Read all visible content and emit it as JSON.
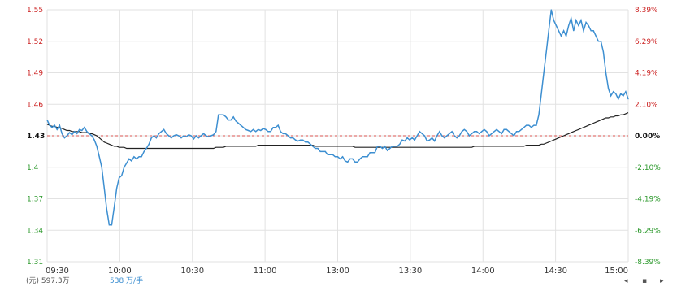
{
  "chart_data": {
    "type": "line",
    "title": "",
    "xlabel": "",
    "ylabel": "",
    "reference_price": 1.43,
    "ylim": [
      1.31,
      1.55
    ],
    "pct_lim": [
      -8.39,
      8.39
    ],
    "grid": true,
    "colors": {
      "price": "#3d8fd1",
      "avg": "#222222",
      "ref": "#d9534f",
      "up": "#cc2222",
      "down": "#2e9a2e",
      "ref_label": "#111111",
      "grid": "#e2e2e2"
    },
    "left_ticks": [
      "1.55",
      "1.52",
      "1.49",
      "1.46",
      "1.43",
      "1.4",
      "1.37",
      "1.34",
      "1.31"
    ],
    "right_ticks": [
      "8.39%",
      "6.29%",
      "4.19%",
      "2.10%",
      "0.00%",
      "-2.10%",
      "-4.19%",
      "-6.29%",
      "-8.39%"
    ],
    "x_ticks": [
      "09:30",
      "10:00",
      "10:30",
      "11:00",
      "13:00",
      "13:30",
      "14:00",
      "14:30",
      "15:00"
    ],
    "footer_left": "(元) 597.3万",
    "footer_mid": "538 万/手",
    "watermark": "",
    "series": [
      {
        "values": [
          1.445,
          1.44,
          1.438,
          1.44,
          1.436,
          1.44,
          1.432,
          1.428,
          1.43,
          1.433,
          1.431,
          1.434,
          1.432,
          1.436,
          1.435,
          1.438,
          1.434,
          1.432,
          1.43,
          1.426,
          1.42,
          1.41,
          1.4,
          1.38,
          1.36,
          1.345,
          1.345,
          1.362,
          1.38,
          1.39,
          1.392,
          1.4,
          1.404,
          1.408,
          1.406,
          1.41,
          1.408,
          1.41,
          1.41,
          1.415,
          1.418,
          1.422,
          1.428,
          1.43,
          1.428,
          1.432,
          1.434,
          1.436,
          1.432,
          1.43,
          1.428,
          1.43,
          1.431,
          1.43,
          1.428,
          1.43,
          1.429,
          1.431,
          1.43,
          1.427,
          1.43,
          1.428,
          1.43,
          1.432,
          1.43,
          1.429,
          1.43,
          1.431,
          1.434,
          1.45,
          1.45,
          1.45,
          1.448,
          1.445,
          1.445,
          1.448,
          1.444,
          1.442,
          1.44,
          1.438,
          1.436,
          1.435,
          1.434,
          1.436,
          1.434,
          1.436,
          1.435,
          1.437,
          1.436,
          1.434,
          1.434,
          1.438,
          1.438,
          1.44,
          1.434,
          1.432,
          1.432,
          1.43,
          1.428,
          1.428,
          1.426,
          1.425,
          1.426,
          1.426,
          1.424,
          1.424,
          1.422,
          1.42,
          1.418,
          1.418,
          1.415,
          1.415,
          1.415,
          1.412,
          1.412,
          1.412,
          1.41,
          1.41,
          1.408,
          1.41,
          1.406,
          1.405,
          1.408,
          1.408,
          1.405,
          1.405,
          1.408,
          1.41,
          1.41,
          1.41,
          1.414,
          1.414,
          1.414,
          1.42,
          1.42,
          1.418,
          1.42,
          1.416,
          1.418,
          1.42,
          1.42,
          1.42,
          1.422,
          1.426,
          1.425,
          1.428,
          1.426,
          1.428,
          1.426,
          1.43,
          1.434,
          1.432,
          1.43,
          1.425,
          1.426,
          1.428,
          1.425,
          1.43,
          1.434,
          1.43,
          1.428,
          1.43,
          1.432,
          1.434,
          1.43,
          1.428,
          1.43,
          1.434,
          1.436,
          1.434,
          1.43,
          1.432,
          1.434,
          1.434,
          1.432,
          1.434,
          1.436,
          1.434,
          1.43,
          1.432,
          1.434,
          1.436,
          1.434,
          1.432,
          1.436,
          1.436,
          1.434,
          1.432,
          1.43,
          1.434,
          1.434,
          1.436,
          1.438,
          1.44,
          1.44,
          1.438,
          1.44,
          1.44,
          1.45,
          1.47,
          1.49,
          1.51,
          1.53,
          1.55,
          1.54,
          1.535,
          1.53,
          1.525,
          1.53,
          1.525,
          1.535,
          1.542,
          1.53,
          1.54,
          1.535,
          1.54,
          1.53,
          1.538,
          1.535,
          1.53,
          1.53,
          1.525,
          1.52,
          1.52,
          1.51,
          1.49,
          1.475,
          1.468,
          1.472,
          1.47,
          1.465,
          1.47,
          1.468,
          1.472,
          1.465
        ],
        "avg": [
          1.441,
          1.44,
          1.439,
          1.439,
          1.438,
          1.438,
          1.437,
          1.436,
          1.435,
          1.435,
          1.434,
          1.434,
          1.434,
          1.434,
          1.433,
          1.433,
          1.433,
          1.432,
          1.432,
          1.431,
          1.43,
          1.428,
          1.426,
          1.424,
          1.423,
          1.422,
          1.421,
          1.42,
          1.42,
          1.419,
          1.419,
          1.419,
          1.418,
          1.418,
          1.418,
          1.418,
          1.418,
          1.418,
          1.418,
          1.418,
          1.418,
          1.418,
          1.418,
          1.418,
          1.418,
          1.418,
          1.418,
          1.418,
          1.418,
          1.418,
          1.418,
          1.418,
          1.418,
          1.418,
          1.418,
          1.418,
          1.418,
          1.418,
          1.418,
          1.418,
          1.418,
          1.418,
          1.418,
          1.418,
          1.418,
          1.418,
          1.418,
          1.418,
          1.419,
          1.419,
          1.419,
          1.419,
          1.42,
          1.42,
          1.42,
          1.42,
          1.42,
          1.42,
          1.42,
          1.42,
          1.42,
          1.42,
          1.42,
          1.42,
          1.42,
          1.421,
          1.421,
          1.421,
          1.421,
          1.421,
          1.421,
          1.421,
          1.421,
          1.421,
          1.421,
          1.421,
          1.421,
          1.421,
          1.421,
          1.421,
          1.421,
          1.421,
          1.421,
          1.421,
          1.421,
          1.421,
          1.421,
          1.421,
          1.42,
          1.42,
          1.42,
          1.42,
          1.42,
          1.42,
          1.42,
          1.42,
          1.42,
          1.42,
          1.42,
          1.42,
          1.42,
          1.42,
          1.42,
          1.42,
          1.419,
          1.419,
          1.419,
          1.419,
          1.419,
          1.419,
          1.419,
          1.419,
          1.419,
          1.419,
          1.419,
          1.419,
          1.419,
          1.419,
          1.419,
          1.419,
          1.419,
          1.419,
          1.419,
          1.419,
          1.419,
          1.419,
          1.419,
          1.419,
          1.419,
          1.419,
          1.419,
          1.419,
          1.419,
          1.419,
          1.419,
          1.419,
          1.419,
          1.419,
          1.419,
          1.419,
          1.419,
          1.419,
          1.419,
          1.419,
          1.419,
          1.419,
          1.419,
          1.419,
          1.419,
          1.419,
          1.419,
          1.419,
          1.42,
          1.42,
          1.42,
          1.42,
          1.42,
          1.42,
          1.42,
          1.42,
          1.42,
          1.42,
          1.42,
          1.42,
          1.42,
          1.42,
          1.42,
          1.42,
          1.42,
          1.42,
          1.42,
          1.42,
          1.42,
          1.421,
          1.421,
          1.421,
          1.421,
          1.421,
          1.421,
          1.422,
          1.422,
          1.423,
          1.424,
          1.425,
          1.426,
          1.427,
          1.428,
          1.429,
          1.43,
          1.431,
          1.432,
          1.433,
          1.434,
          1.435,
          1.436,
          1.437,
          1.438,
          1.439,
          1.44,
          1.441,
          1.442,
          1.443,
          1.444,
          1.445,
          1.446,
          1.447,
          1.447,
          1.448,
          1.448,
          1.449,
          1.449,
          1.45,
          1.45,
          1.451,
          1.452
        ]
      }
    ]
  }
}
